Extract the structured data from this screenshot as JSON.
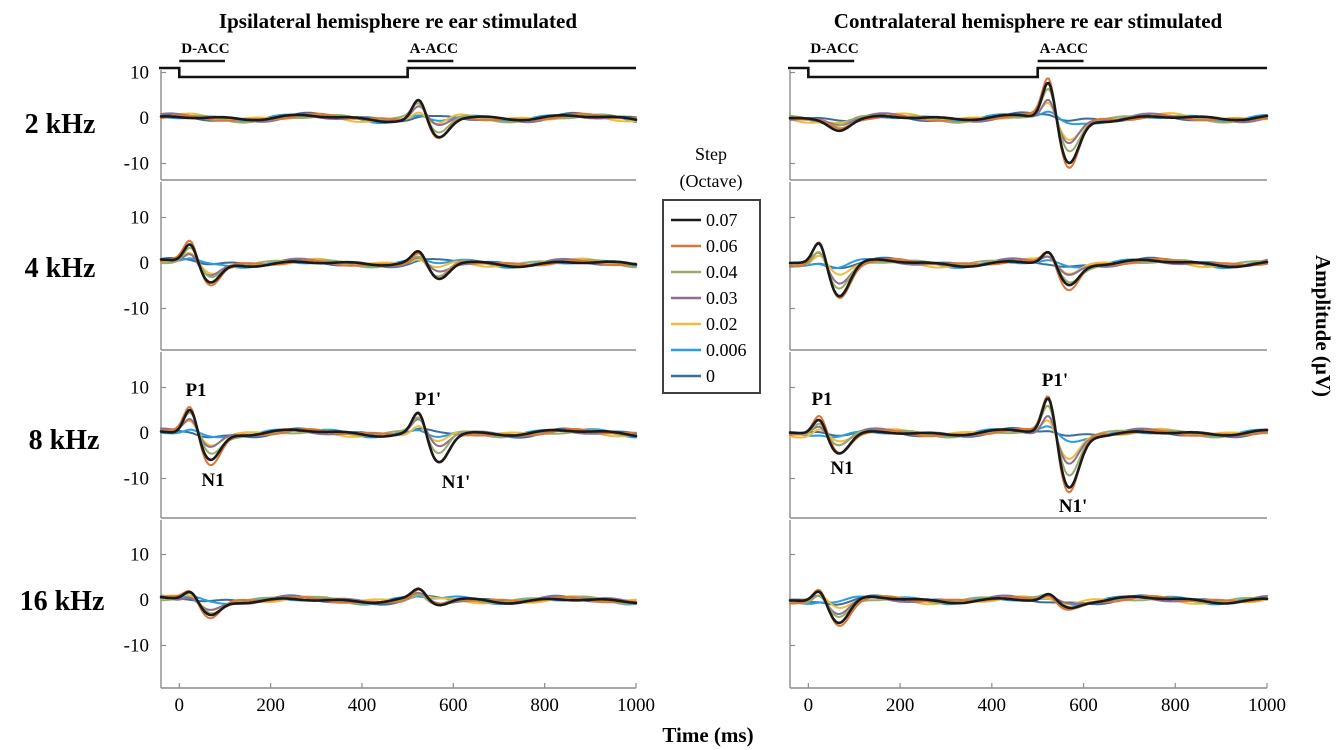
{
  "figure": {
    "xlabel": "Time (ms)",
    "ylabel": "Amplitude (μV)"
  },
  "legend": {
    "title_line1": "Step",
    "title_line2": "(Octave)"
  },
  "stimulus": {
    "d_label": "D-ACC",
    "a_label": "A-ACC",
    "d_range": [
      0,
      100
    ],
    "a_range": [
      500,
      600
    ]
  },
  "chart_data": {
    "type": "line",
    "x_axis": {
      "range": [
        -40,
        1000
      ],
      "ticks": [
        0,
        200,
        400,
        600,
        800,
        1000
      ],
      "tick_labels": [
        "0",
        "200",
        "400",
        "600",
        "800",
        "1000"
      ]
    },
    "y_axis": {
      "range": [
        -19,
        19
      ],
      "ticks": [
        10,
        0,
        -10
      ],
      "tick_labels": [
        "10",
        "0",
        "-10"
      ]
    },
    "series_styles": [
      {
        "name": "0.07",
        "color": "#1a1a1a"
      },
      {
        "name": "0.06",
        "color": "#d9773a"
      },
      {
        "name": "0.04",
        "color": "#9aab6b"
      },
      {
        "name": "0.03",
        "color": "#8e7191"
      },
      {
        "name": "0.02",
        "color": "#efbd3c"
      },
      {
        "name": "0.006",
        "color": "#2a9ee0"
      },
      {
        "name": "0",
        "color": "#3c6e9b"
      }
    ],
    "panels": [
      {
        "title": "Ipsilateral hemisphere re ear stimulated",
        "rows": [
          {
            "label": "2 kHz",
            "onset": {
              "p1": 0,
              "n1": 0
            },
            "change": {
              "p1": 4.5,
              "n1": -4.5
            }
          },
          {
            "label": "4 kHz",
            "onset": {
              "p1": 4.5,
              "n1": -4.5
            },
            "change": {
              "p1": 2.5,
              "n1": -4
            }
          },
          {
            "label": "8 kHz",
            "onset": {
              "p1": 6,
              "n1": -6
            },
            "change": {
              "p1": 5,
              "n1": -6.5
            }
          },
          {
            "label": "16 kHz",
            "onset": {
              "p1": 2,
              "n1": -3.5
            },
            "change": {
              "p1": 2,
              "n1": -1.5
            }
          }
        ],
        "annotations": {
          "p1": "P1",
          "n1": "N1",
          "p1_prime": "P1'",
          "n1_prime": "N1'"
        }
      },
      {
        "title": "Contralateral hemisphere re ear stimulated",
        "rows": [
          {
            "label": "2 kHz",
            "onset": {
              "p1": 0,
              "n1": -2
            },
            "change": {
              "p1": 9,
              "n1": -10
            }
          },
          {
            "label": "4 kHz",
            "onset": {
              "p1": 5.5,
              "n1": -7
            },
            "change": {
              "p1": 3,
              "n1": -5
            }
          },
          {
            "label": "8 kHz",
            "onset": {
              "p1": 4,
              "n1": -4
            },
            "change": {
              "p1": 9,
              "n1": -12
            }
          },
          {
            "label": "16 kHz",
            "onset": {
              "p1": 3,
              "n1": -5
            },
            "change": {
              "p1": 1.5,
              "n1": -1.5
            }
          }
        ],
        "annotations": {
          "p1": "P1",
          "n1": "N1",
          "p1_prime": "P1'",
          "n1_prime": "N1'"
        }
      }
    ]
  }
}
